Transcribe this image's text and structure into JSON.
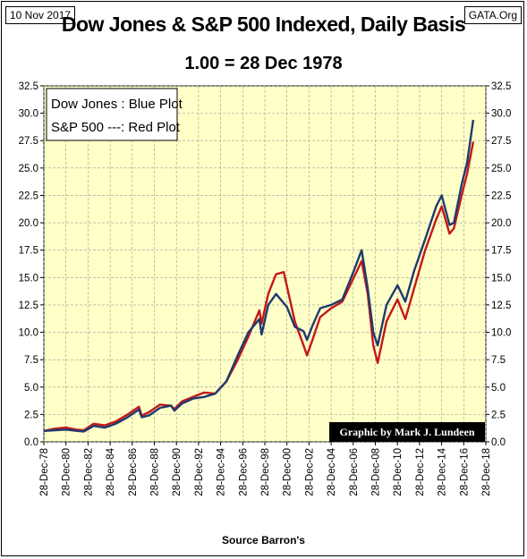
{
  "header": {
    "date": "10 Nov 2017",
    "source_tag": "GATA.Org"
  },
  "chart_data": {
    "type": "line",
    "title": "Dow Jones & S&P 500 Indexed, Daily Basis",
    "subtitle": "1.00 = 28 Dec 1978",
    "xlabel": "Source Barron's",
    "ylabel": "",
    "legend": {
      "placement": "top-left",
      "entries": [
        "Dow Jones : Blue Plot",
        "S&P 500 ---: Red Plot"
      ]
    },
    "credit": "Graphic by Mark J. Lundeen",
    "grid": true,
    "ylim": [
      0,
      32.5
    ],
    "xlim": [
      "1978-12-28",
      "2018-12-28"
    ],
    "yticks": [
      "0.0",
      "2.5",
      "5.0",
      "7.5",
      "10.0",
      "12.5",
      "15.0",
      "17.5",
      "20.0",
      "22.5",
      "25.0",
      "27.5",
      "30.0",
      "32.5"
    ],
    "xticks": [
      "28-Dec-78",
      "28-Dec-80",
      "28-Dec-82",
      "28-Dec-84",
      "28-Dec-86",
      "28-Dec-88",
      "28-Dec-90",
      "28-Dec-92",
      "28-Dec-94",
      "28-Dec-96",
      "28-Dec-98",
      "28-Dec-00",
      "28-Dec-02",
      "28-Dec-04",
      "28-Dec-06",
      "28-Dec-08",
      "28-Dec-10",
      "28-Dec-12",
      "28-Dec-14",
      "28-Dec-16",
      "28-Dec-18"
    ],
    "series": [
      {
        "name": "Dow Jones",
        "color": "#1f3a6e",
        "x": [
          1978.99,
          1980.0,
          1981.0,
          1982.0,
          1982.6,
          1983.5,
          1984.5,
          1985.5,
          1986.5,
          1987.6,
          1987.85,
          1988.5,
          1989.5,
          1990.5,
          1990.8,
          1991.5,
          1992.5,
          1993.5,
          1994.5,
          1995.5,
          1996.5,
          1997.5,
          1998.5,
          1998.7,
          1999.3,
          2000.0,
          2001.0,
          2001.7,
          2002.5,
          2002.8,
          2003.3,
          2004.0,
          2005.0,
          2006.0,
          2007.0,
          2007.75,
          2008.3,
          2008.8,
          2009.2,
          2010.0,
          2011.0,
          2011.7,
          2012.5,
          2013.5,
          2014.5,
          2015.0,
          2015.7,
          2016.1,
          2016.8,
          2017.3,
          2017.85
        ],
        "y": [
          1.0,
          1.05,
          1.12,
          1.0,
          0.95,
          1.45,
          1.3,
          1.65,
          2.2,
          2.95,
          2.25,
          2.4,
          3.1,
          3.3,
          2.85,
          3.5,
          3.95,
          4.1,
          4.4,
          5.5,
          7.8,
          10.0,
          11.2,
          9.8,
          12.5,
          13.5,
          12.3,
          10.5,
          10.1,
          9.3,
          10.6,
          12.2,
          12.5,
          13.0,
          15.5,
          17.5,
          14.0,
          10.0,
          8.8,
          12.5,
          14.3,
          12.8,
          15.6,
          18.5,
          21.5,
          22.5,
          19.8,
          20.0,
          23.5,
          25.5,
          29.4
        ]
      },
      {
        "name": "S&P 500",
        "color": "#c41818",
        "x": [
          1978.99,
          1980.0,
          1981.0,
          1982.0,
          1982.6,
          1983.5,
          1984.5,
          1985.5,
          1986.5,
          1987.6,
          1987.85,
          1988.5,
          1989.5,
          1990.5,
          1990.8,
          1991.5,
          1992.5,
          1993.5,
          1994.5,
          1995.5,
          1996.5,
          1997.5,
          1998.5,
          1998.7,
          1999.3,
          2000.0,
          2000.7,
          2001.7,
          2002.5,
          2002.8,
          2003.3,
          2004.0,
          2005.0,
          2006.0,
          2007.0,
          2007.75,
          2008.3,
          2008.8,
          2009.2,
          2010.0,
          2011.0,
          2011.7,
          2012.5,
          2013.5,
          2014.5,
          2015.0,
          2015.7,
          2016.1,
          2016.8,
          2017.3,
          2017.85
        ],
        "y": [
          1.0,
          1.2,
          1.3,
          1.1,
          1.05,
          1.65,
          1.5,
          1.85,
          2.45,
          3.2,
          2.4,
          2.7,
          3.4,
          3.3,
          3.0,
          3.7,
          4.1,
          4.5,
          4.4,
          5.5,
          7.4,
          9.6,
          12.0,
          10.8,
          13.5,
          15.3,
          15.5,
          11.0,
          8.8,
          7.9,
          9.3,
          11.4,
          12.2,
          12.8,
          14.9,
          16.5,
          13.5,
          8.8,
          7.2,
          11.0,
          13.0,
          11.2,
          14.0,
          17.5,
          20.3,
          21.5,
          19.0,
          19.5,
          22.5,
          24.5,
          27.4
        ]
      }
    ]
  }
}
